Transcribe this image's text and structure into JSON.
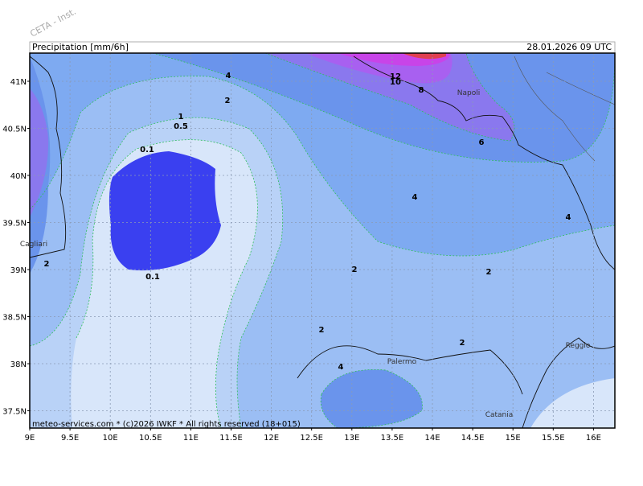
{
  "watermark": "CETA - Inst.",
  "header": {
    "title": "Precipitation [mm/6h]",
    "valid": "28.01.2026 09 UTC"
  },
  "footer": "meteo-services.com * (c)2026 IWKF * All rights reserved (18+015)",
  "axes": {
    "lat_labels": [
      "41N",
      "40.5N",
      "40N",
      "39.5N",
      "39N",
      "38.5N",
      "38N",
      "37.5N"
    ],
    "lon_labels": [
      "9E",
      "9.5E",
      "10E",
      "10.5E",
      "11E",
      "11.5E",
      "12E",
      "12.5E",
      "13E",
      "13.5E",
      "14E",
      "14.5E",
      "15E",
      "15.5E",
      "16E"
    ]
  },
  "cities": [
    {
      "label": "Napoli"
    },
    {
      "label": "Cagliari"
    },
    {
      "label": "Palermo"
    },
    {
      "label": "Catania"
    },
    {
      "label": "Reggio"
    }
  ],
  "contour_labels": [
    {
      "label": "12"
    },
    {
      "label": "10"
    },
    {
      "label": "8"
    },
    {
      "label": "6"
    },
    {
      "label": "4"
    },
    {
      "label": "2"
    },
    {
      "label": "1"
    },
    {
      "label": "0.5"
    },
    {
      "label": "0.1"
    },
    {
      "label": "0.1"
    },
    {
      "label": "4"
    },
    {
      "label": "4"
    },
    {
      "label": "2"
    },
    {
      "label": "2"
    },
    {
      "label": "2"
    },
    {
      "label": "2"
    },
    {
      "label": "2"
    },
    {
      "label": "4"
    }
  ]
}
